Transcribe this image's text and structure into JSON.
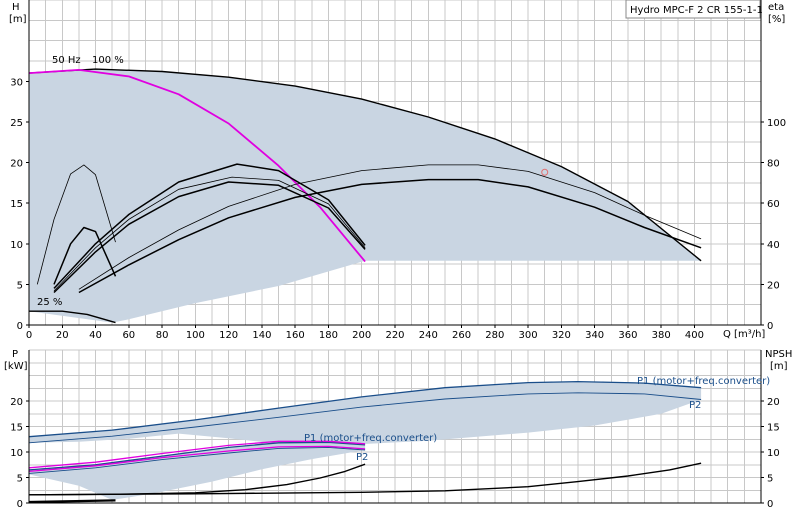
{
  "chart_data": [
    {
      "type": "line",
      "title_box": "Hydro MPC-F 2 CR 155-1-1",
      "left_axis": {
        "label": "H",
        "unit": "[m]",
        "ylim": [
          0,
          40
        ],
        "ticks": [
          0,
          5,
          10,
          15,
          20,
          25,
          30
        ]
      },
      "right_axis": {
        "label": "eta",
        "unit": "[%]",
        "ylim": [
          0,
          160
        ],
        "ticks": [
          0,
          20,
          40,
          60,
          80,
          100
        ]
      },
      "x_axis": {
        "label": "Q [m³/h]",
        "xlim": [
          0,
          440
        ],
        "ticks": [
          0,
          20,
          40,
          60,
          80,
          100,
          120,
          140,
          160,
          180,
          200,
          220,
          240,
          260,
          280,
          300,
          320,
          340,
          360,
          380,
          400
        ]
      },
      "grid": true,
      "annotations": [
        {
          "text": "50 Hz",
          "color": "#000000"
        },
        {
          "text": "100 %",
          "color": "#000000"
        },
        {
          "text": "25 %",
          "color": "#000000"
        }
      ],
      "area_color": "#c9d5e2",
      "area_upper": [
        [
          0,
          31.0
        ],
        [
          40,
          31.5
        ],
        [
          80,
          31.2
        ],
        [
          120,
          30.5
        ],
        [
          160,
          29.4
        ],
        [
          200,
          27.8
        ],
        [
          240,
          25.6
        ],
        [
          280,
          22.9
        ],
        [
          320,
          19.5
        ],
        [
          360,
          15.2
        ],
        [
          404,
          7.9
        ]
      ],
      "area_lower": [
        [
          404,
          7.9
        ],
        [
          202,
          7.9
        ],
        [
          150,
          4.8
        ],
        [
          100,
          2.7
        ],
        [
          60,
          0.7
        ],
        [
          50,
          0.3
        ],
        [
          0,
          1.7
        ]
      ],
      "series": [
        {
          "color": "#000000",
          "width": 1.4,
          "points": [
            [
              0,
              31.0
            ],
            [
              40,
              31.5
            ],
            [
              80,
              31.2
            ],
            [
              120,
              30.5
            ],
            [
              160,
              29.4
            ],
            [
              200,
              27.8
            ],
            [
              240,
              25.6
            ],
            [
              280,
              22.9
            ],
            [
              320,
              19.5
            ],
            [
              360,
              15.2
            ],
            [
              404,
              7.9
            ]
          ]
        },
        {
          "color": "#000000",
          "width": 1.4,
          "points": [
            [
              0,
              1.7
            ],
            [
              20,
              1.7
            ],
            [
              35,
              1.3
            ],
            [
              52,
              0.3
            ]
          ]
        },
        {
          "color": "#e000e0",
          "width": 1.8,
          "points": [
            [
              0,
              31.0
            ],
            [
              30,
              31.4
            ],
            [
              60,
              30.6
            ],
            [
              90,
              28.4
            ],
            [
              120,
              24.8
            ],
            [
              150,
              19.6
            ],
            [
              175,
              14.5
            ],
            [
              202,
              7.8
            ]
          ]
        },
        {
          "color": "#000000",
          "width": 1.5,
          "points": [
            [
              15,
              4.0
            ],
            [
              40,
              9.0
            ],
            [
              60,
              12.4
            ],
            [
              90,
              15.8
            ],
            [
              120,
              17.6
            ],
            [
              150,
              17.2
            ],
            [
              180,
              14.4
            ],
            [
              202,
              9.3
            ]
          ]
        },
        {
          "color": "#000000",
          "width": 1.5,
          "points": [
            [
              15,
              4.5
            ],
            [
              40,
              10.0
            ],
            [
              60,
              13.6
            ],
            [
              90,
              17.6
            ],
            [
              125,
              19.8
            ],
            [
              150,
              19.0
            ],
            [
              180,
              15.4
            ],
            [
              202,
              9.8
            ]
          ]
        },
        {
          "color": "#000000",
          "width": 0.8,
          "points": [
            [
              15,
              4.2
            ],
            [
              40,
              9.5
            ],
            [
              60,
              13.0
            ],
            [
              90,
              16.7
            ],
            [
              122,
              18.2
            ],
            [
              150,
              17.8
            ],
            [
              180,
              14.9
            ],
            [
              202,
              9.5
            ]
          ]
        },
        {
          "color": "#000000",
          "width": 1.5,
          "points": [
            [
              30,
              4.0
            ],
            [
              60,
              7.4
            ],
            [
              90,
              10.5
            ],
            [
              120,
              13.2
            ],
            [
              160,
              15.7
            ],
            [
              200,
              17.3
            ],
            [
              240,
              17.9
            ],
            [
              270,
              17.9
            ],
            [
              300,
              17.0
            ],
            [
              340,
              14.5
            ],
            [
              370,
              12.0
            ],
            [
              404,
              9.5
            ]
          ]
        },
        {
          "color": "#000000",
          "width": 0.8,
          "points": [
            [
              30,
              4.4
            ],
            [
              60,
              8.3
            ],
            [
              90,
              11.7
            ],
            [
              120,
              14.6
            ],
            [
              160,
              17.3
            ],
            [
              200,
              19.0
            ],
            [
              240,
              19.7
            ],
            [
              270,
              19.7
            ],
            [
              300,
              18.9
            ],
            [
              340,
              16.3
            ],
            [
              370,
              13.5
            ],
            [
              404,
              10.6
            ]
          ]
        },
        {
          "color": "#000000",
          "width": 0.8,
          "points": [
            [
              5,
              5.0
            ],
            [
              15,
              13.0
            ],
            [
              25,
              18.6
            ],
            [
              33,
              19.7
            ],
            [
              40,
              18.5
            ],
            [
              52,
              10.2
            ]
          ]
        },
        {
          "color": "#000000",
          "width": 1.5,
          "points": [
            [
              15,
              5.0
            ],
            [
              25,
              10.0
            ],
            [
              33,
              12.0
            ],
            [
              40,
              11.5
            ],
            [
              52,
              6.0
            ]
          ]
        }
      ],
      "markers": [
        {
          "x": 310,
          "y": 18.8,
          "color": "#e07070"
        }
      ]
    },
    {
      "type": "line",
      "left_axis": {
        "label": "P",
        "unit": "[kW]",
        "ylim": [
          0,
          30
        ],
        "ticks": [
          0,
          5,
          10,
          15,
          20
        ]
      },
      "right_axis": {
        "label": "NPSH",
        "unit": "[m]",
        "ylim": [
          0,
          30
        ],
        "ticks": [
          0,
          5,
          10,
          15,
          20
        ]
      },
      "x_axis": {
        "xlim": [
          0,
          440
        ]
      },
      "grid": true,
      "annotations": [
        {
          "text": "P1 (motor+freq.converter)",
          "color": "#1a4e8a"
        },
        {
          "text": "P2",
          "color": "#1a4e8a"
        },
        {
          "text": "P1 (motor+freq.converter)",
          "color": "#1a4e8a"
        },
        {
          "text": "P2",
          "color": "#1a4e8a"
        }
      ],
      "area_color": "#c9d5e2",
      "areas": [
        {
          "upper": [
            [
              0,
              13.0
            ],
            [
              50,
              14.3
            ],
            [
              100,
              16.3
            ],
            [
              150,
              18.6
            ],
            [
              200,
              20.8
            ],
            [
              250,
              22.6
            ],
            [
              300,
              23.6
            ],
            [
              330,
              23.8
            ],
            [
              370,
              23.5
            ],
            [
              404,
              22.6
            ]
          ],
          "lower": [
            [
              404,
              20.3
            ],
            [
              380,
              17.5
            ],
            [
              340,
              15.2
            ],
            [
              300,
              13.8
            ],
            [
              240,
              12.2
            ],
            [
              190,
              11.4
            ],
            [
              150,
              11.6
            ],
            [
              120,
              12.7
            ],
            [
              90,
              13.6
            ],
            [
              60,
              12.6
            ],
            [
              30,
              12.0
            ],
            [
              0,
              11.8
            ]
          ]
        },
        {
          "upper": [
            [
              0,
              6.5
            ],
            [
              40,
              7.5
            ],
            [
              80,
              9.2
            ],
            [
              120,
              10.9
            ],
            [
              150,
              11.8
            ],
            [
              180,
              11.9
            ],
            [
              202,
              11.4
            ]
          ],
          "lower": [
            [
              202,
              10.4
            ],
            [
              170,
              8.6
            ],
            [
              140,
              6.6
            ],
            [
              110,
              4.2
            ],
            [
              80,
              2.2
            ],
            [
              62,
              1.2
            ],
            [
              50,
              0.6
            ],
            [
              30,
              3.4
            ],
            [
              0,
              5.6
            ]
          ]
        }
      ],
      "series": [
        {
          "color": "#1a4e8a",
          "width": 1.3,
          "points": [
            [
              0,
              13.0
            ],
            [
              50,
              14.3
            ],
            [
              100,
              16.3
            ],
            [
              150,
              18.6
            ],
            [
              200,
              20.8
            ],
            [
              250,
              22.6
            ],
            [
              300,
              23.6
            ],
            [
              330,
              23.8
            ],
            [
              370,
              23.5
            ],
            [
              404,
              22.6
            ]
          ]
        },
        {
          "color": "#1a4e8a",
          "width": 0.9,
          "points": [
            [
              0,
              11.8
            ],
            [
              50,
              13.1
            ],
            [
              100,
              14.9
            ],
            [
              150,
              16.8
            ],
            [
              200,
              18.8
            ],
            [
              250,
              20.4
            ],
            [
              300,
              21.4
            ],
            [
              330,
              21.6
            ],
            [
              370,
              21.4
            ],
            [
              404,
              20.3
            ]
          ]
        },
        {
          "color": "#1a4e8a",
          "width": 1.3,
          "points": [
            [
              0,
              6.5
            ],
            [
              40,
              7.5
            ],
            [
              80,
              9.2
            ],
            [
              120,
              10.9
            ],
            [
              150,
              11.8
            ],
            [
              180,
              11.9
            ],
            [
              202,
              11.4
            ]
          ]
        },
        {
          "color": "#1a4e8a",
          "width": 0.9,
          "points": [
            [
              0,
              5.8
            ],
            [
              40,
              6.9
            ],
            [
              80,
              8.5
            ],
            [
              120,
              9.8
            ],
            [
              150,
              10.7
            ],
            [
              180,
              10.9
            ],
            [
              202,
              10.4
            ]
          ]
        },
        {
          "color": "#e000e0",
          "width": 1.3,
          "points": [
            [
              0,
              6.9
            ],
            [
              40,
              8.0
            ],
            [
              80,
              9.7
            ],
            [
              120,
              11.3
            ],
            [
              150,
              12.1
            ],
            [
              180,
              12.1
            ],
            [
              202,
              11.6
            ]
          ]
        },
        {
          "color": "#e000e0",
          "width": 1.3,
          "points": [
            [
              0,
              6.2
            ],
            [
              40,
              7.3
            ],
            [
              80,
              8.9
            ],
            [
              120,
              10.2
            ],
            [
              150,
              11.0
            ],
            [
              180,
              11.1
            ],
            [
              202,
              10.6
            ]
          ]
        },
        {
          "color": "#000000",
          "width": 1.4,
          "points": [
            [
              0,
              1.6
            ],
            [
              50,
              1.7
            ],
            [
              100,
              2.0
            ],
            [
              130,
              2.6
            ],
            [
              155,
              3.6
            ],
            [
              175,
              4.9
            ],
            [
              190,
              6.2
            ],
            [
              202,
              7.6
            ]
          ]
        },
        {
          "color": "#000000",
          "width": 1.4,
          "points": [
            [
              0,
              1.6
            ],
            [
              100,
              1.8
            ],
            [
              200,
              2.1
            ],
            [
              250,
              2.4
            ],
            [
              300,
              3.2
            ],
            [
              330,
              4.2
            ],
            [
              360,
              5.3
            ],
            [
              385,
              6.5
            ],
            [
              404,
              7.8
            ]
          ]
        },
        {
          "color": "#000000",
          "width": 2.2,
          "points": [
            [
              0,
              0.2
            ],
            [
              52,
              0.5
            ]
          ]
        }
      ]
    }
  ]
}
